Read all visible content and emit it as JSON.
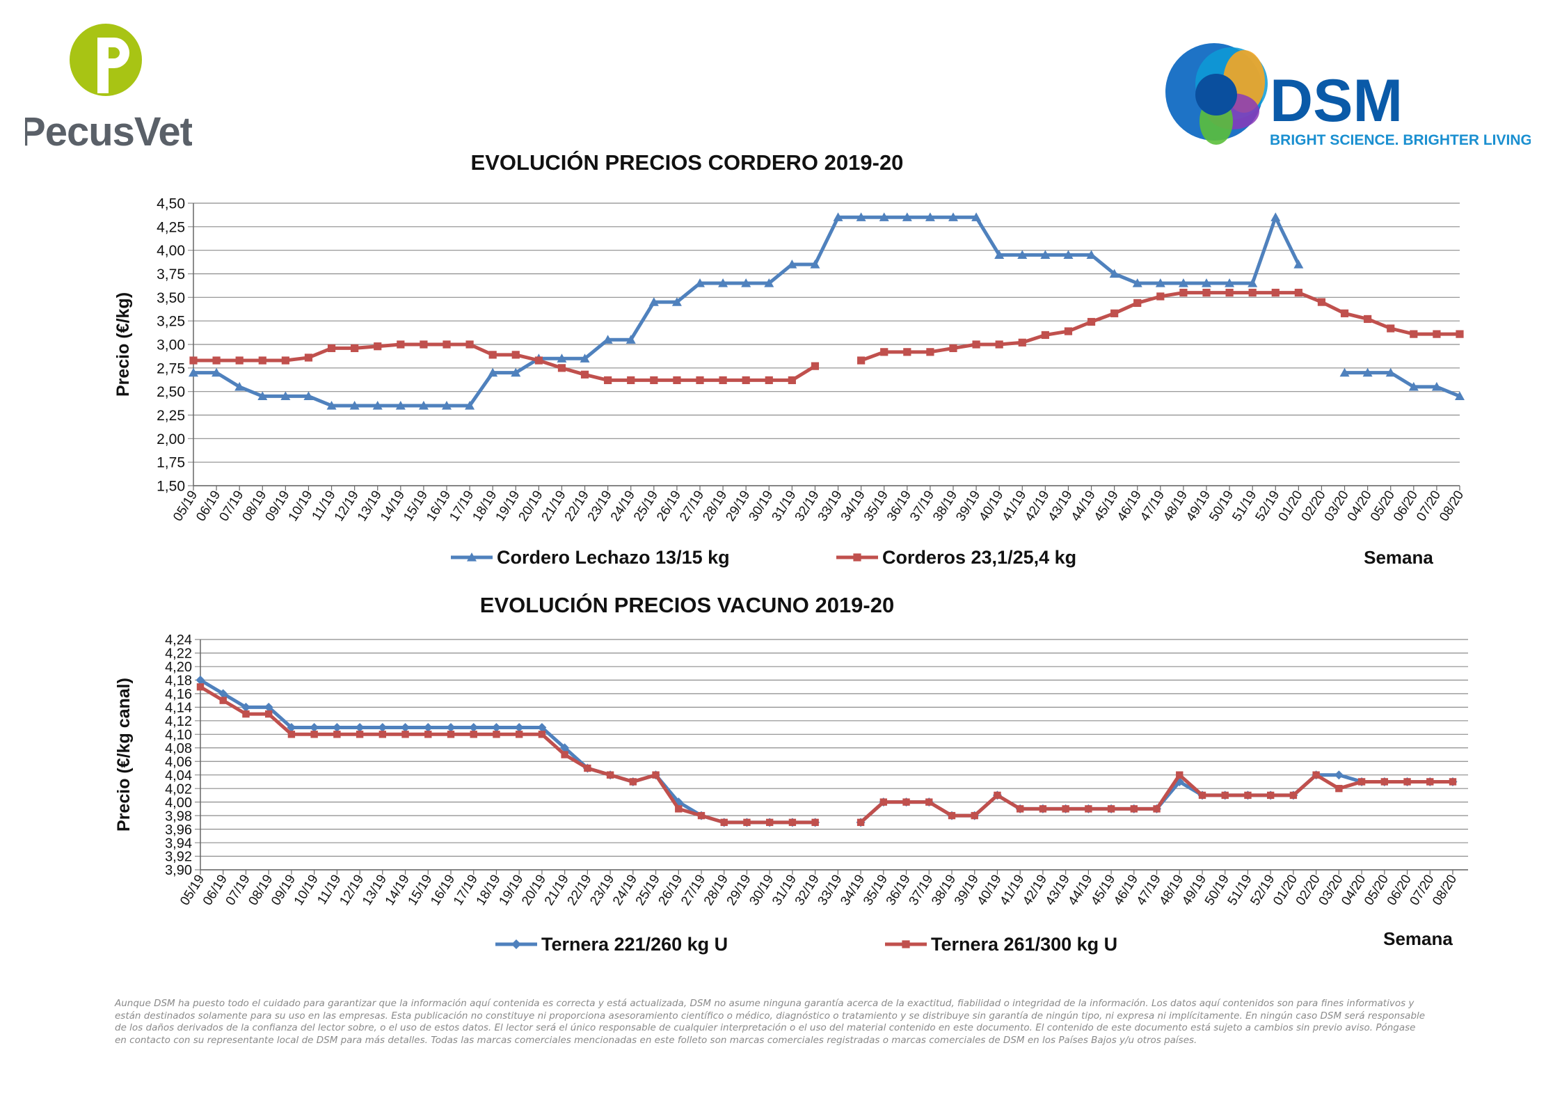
{
  "brand": {
    "pecusvet_name": "PecusVet",
    "dsm_name": "DSM",
    "dsm_tagline": "BRIGHT SCIENCE. BRIGHTER LIVING."
  },
  "chart_data": [
    {
      "type": "line",
      "title": "EVOLUCIÓN PRECIOS CORDERO 2019-20",
      "ylabel": "Precio (€/kg)",
      "xlabel": "Semana",
      "ylim": [
        1.5,
        4.5
      ],
      "ytick_step": 0.25,
      "yticks": [
        "1,50",
        "1,75",
        "2,00",
        "2,25",
        "2,50",
        "2,75",
        "3,00",
        "3,25",
        "3,50",
        "3,75",
        "4,00",
        "4,25",
        "4,50"
      ],
      "grid": true,
      "legend_position": "bottom",
      "categories": [
        "05/19",
        "06/19",
        "07/19",
        "08/19",
        "09/19",
        "10/19",
        "11/19",
        "12/19",
        "13/19",
        "14/19",
        "15/19",
        "16/19",
        "17/19",
        "18/19",
        "19/19",
        "20/19",
        "21/19",
        "22/19",
        "23/19",
        "24/19",
        "25/19",
        "26/19",
        "27/19",
        "28/19",
        "29/19",
        "30/19",
        "31/19",
        "32/19",
        "33/19",
        "34/19",
        "35/19",
        "36/19",
        "37/19",
        "38/19",
        "39/19",
        "40/19",
        "41/19",
        "42/19",
        "43/19",
        "44/19",
        "45/19",
        "46/19",
        "47/19",
        "48/19",
        "49/19",
        "50/19",
        "51/19",
        "52/19",
        "01/20",
        "02/20",
        "03/20",
        "04/20",
        "05/20",
        "06/20",
        "07/20",
        "08/20"
      ],
      "series": [
        {
          "name": "Cordero Lechazo 13/15 kg",
          "color": "#4f81bd",
          "marker": "triangle",
          "values": [
            2.7,
            2.7,
            2.55,
            2.45,
            2.45,
            2.45,
            2.35,
            2.35,
            2.35,
            2.35,
            2.35,
            2.35,
            2.35,
            2.7,
            2.7,
            2.85,
            2.85,
            2.85,
            3.05,
            3.05,
            3.45,
            3.45,
            3.65,
            3.65,
            3.65,
            3.65,
            3.85,
            3.85,
            4.35,
            4.35,
            4.35,
            4.35,
            4.35,
            4.35,
            4.35,
            3.95,
            3.95,
            3.95,
            3.95,
            3.95,
            3.75,
            3.65,
            3.65,
            3.65,
            3.65,
            3.65,
            3.65,
            4.35,
            3.85,
            null,
            2.7,
            2.7,
            2.7,
            2.55,
            2.55,
            2.45
          ]
        },
        {
          "name": "Corderos 23,1/25,4 kg",
          "color": "#c0504d",
          "marker": "square",
          "values": [
            2.83,
            2.83,
            2.83,
            2.83,
            2.83,
            2.86,
            2.96,
            2.96,
            2.98,
            3.0,
            3.0,
            3.0,
            3.0,
            2.89,
            2.89,
            2.83,
            2.75,
            2.68,
            2.62,
            2.62,
            2.62,
            2.62,
            2.62,
            2.62,
            2.62,
            2.62,
            2.62,
            2.77,
            null,
            2.83,
            2.92,
            2.92,
            2.92,
            2.96,
            3.0,
            3.0,
            3.02,
            3.1,
            3.14,
            3.24,
            3.33,
            3.44,
            3.51,
            3.55,
            3.55,
            3.55,
            3.55,
            3.55,
            3.55,
            3.45,
            3.33,
            3.27,
            3.17,
            3.11,
            3.11,
            3.11
          ]
        }
      ]
    },
    {
      "type": "line",
      "title": "EVOLUCIÓN PRECIOS VACUNO 2019-20",
      "ylabel": "Precio (€/kg canal)",
      "xlabel": "Semana",
      "ylim": [
        3.9,
        4.24
      ],
      "ytick_step": 0.02,
      "yticks": [
        "3,90",
        "3,92",
        "3,94",
        "3,96",
        "3,98",
        "4,00",
        "4,02",
        "4,04",
        "4,06",
        "4,08",
        "4,10",
        "4,12",
        "4,14",
        "4,16",
        "4,18",
        "4,20",
        "4,22",
        "4,24"
      ],
      "grid": true,
      "legend_position": "bottom",
      "categories": [
        "05/19",
        "06/19",
        "07/19",
        "08/19",
        "09/19",
        "10/19",
        "11/19",
        "12/19",
        "13/19",
        "14/19",
        "15/19",
        "16/19",
        "17/19",
        "18/19",
        "19/19",
        "20/19",
        "21/19",
        "22/19",
        "23/19",
        "24/19",
        "25/19",
        "26/19",
        "27/19",
        "28/19",
        "29/19",
        "30/19",
        "31/19",
        "32/19",
        "33/19",
        "34/19",
        "35/19",
        "36/19",
        "37/19",
        "38/19",
        "39/19",
        "40/19",
        "41/19",
        "42/19",
        "43/19",
        "44/19",
        "45/19",
        "46/19",
        "47/19",
        "48/19",
        "49/19",
        "50/19",
        "51/19",
        "52/19",
        "01/20",
        "02/20",
        "03/20",
        "04/20",
        "05/20",
        "06/20",
        "07/20",
        "08/20"
      ],
      "series": [
        {
          "name": "Ternera 221/260 kg U",
          "color": "#4f81bd",
          "marker": "diamond",
          "values": [
            4.18,
            4.16,
            4.14,
            4.14,
            4.11,
            4.11,
            4.11,
            4.11,
            4.11,
            4.11,
            4.11,
            4.11,
            4.11,
            4.11,
            4.11,
            4.11,
            4.08,
            4.05,
            4.04,
            4.03,
            4.04,
            4.0,
            3.98,
            3.97,
            3.97,
            3.97,
            3.97,
            3.97,
            null,
            3.97,
            4.0,
            4.0,
            4.0,
            3.98,
            3.98,
            4.01,
            3.99,
            3.99,
            3.99,
            3.99,
            3.99,
            3.99,
            3.99,
            4.03,
            4.01,
            4.01,
            4.01,
            4.01,
            4.01,
            4.04,
            4.04,
            4.03,
            4.03,
            4.03,
            4.03,
            4.03
          ]
        },
        {
          "name": "Ternera 261/300 kg U",
          "color": "#c0504d",
          "marker": "square",
          "values": [
            4.17,
            4.15,
            4.13,
            4.13,
            4.1,
            4.1,
            4.1,
            4.1,
            4.1,
            4.1,
            4.1,
            4.1,
            4.1,
            4.1,
            4.1,
            4.1,
            4.07,
            4.05,
            4.04,
            4.03,
            4.04,
            3.99,
            3.98,
            3.97,
            3.97,
            3.97,
            3.97,
            3.97,
            null,
            3.97,
            4.0,
            4.0,
            4.0,
            3.98,
            3.98,
            4.01,
            3.99,
            3.99,
            3.99,
            3.99,
            3.99,
            3.99,
            3.99,
            4.04,
            4.01,
            4.01,
            4.01,
            4.01,
            4.01,
            4.04,
            4.02,
            4.03,
            4.03,
            4.03,
            4.03,
            4.03
          ]
        }
      ]
    }
  ],
  "disclaimer": "Aunque DSM ha puesto todo el cuidado para garantizar que la información aquí contenida es correcta y está actualizada, DSM no asume ninguna garantía acerca de la exactitud, fiabilidad o integridad de la información. Los datos aquí contenidos son para fines informativos y están destinados solamente para su uso en las empresas. Esta publicación no constituye ni proporciona asesoramiento científico o médico, diagnóstico o tratamiento y se distribuye sin garantía de ningún tipo, ni expresa ni implícitamente. En ningún caso DSM será responsable de los daños derivados de la confianza del lector sobre, o el uso de estos datos. El lector será el único responsable de cualquier interpretación o el uso del material contenido en este documento. El contenido de este documento está sujeto a cambios sin previo aviso. Póngase en contacto con su representante local de DSM para más detalles. Todas las marcas comerciales mencionadas en este folleto son marcas comerciales registradas o marcas comerciales de DSM en los Países Bajos y/u otros países."
}
